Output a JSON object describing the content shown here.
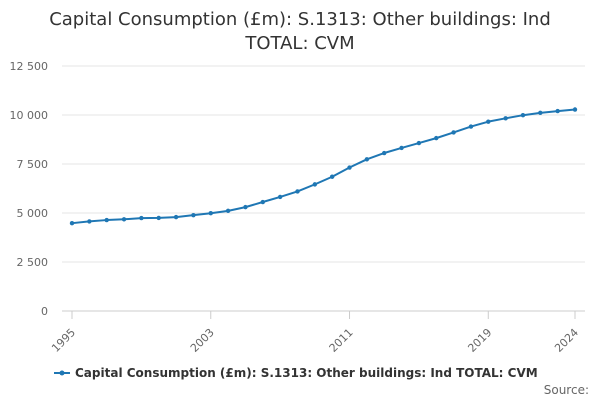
{
  "chart_data": {
    "type": "line",
    "title_lines": [
      "Capital Consumption (£m): S.1313: Other buildings: Ind",
      "TOTAL: CVM"
    ],
    "xlabel": "",
    "ylabel": "",
    "x": [
      1995,
      1996,
      1997,
      1998,
      1999,
      2000,
      2001,
      2002,
      2003,
      2004,
      2005,
      2006,
      2007,
      2008,
      2009,
      2010,
      2011,
      2012,
      2013,
      2014,
      2015,
      2016,
      2017,
      2018,
      2019,
      2020,
      2021,
      2022,
      2023,
      2024
    ],
    "x_tick_labels": [
      "1995",
      "2003",
      "2011",
      "2019",
      "2024"
    ],
    "x_tick_values": [
      1995,
      2003,
      2011,
      2019,
      2024
    ],
    "xlim": [
      1995,
      2024
    ],
    "y_tick_labels": [
      "0",
      "2 500",
      "5 000",
      "7 500",
      "10 000",
      "12 500"
    ],
    "y_tick_values": [
      0,
      2500,
      5000,
      7500,
      10000,
      12500
    ],
    "ylim": [
      0,
      12500
    ],
    "grid": true,
    "legend_position": "bottom",
    "series": [
      {
        "name": "Capital Consumption (£m): S.1313: Other buildings: Ind TOTAL: CVM",
        "color": "#1f77b4",
        "values": [
          4480,
          4570,
          4640,
          4680,
          4740,
          4750,
          4790,
          4890,
          4990,
          5110,
          5300,
          5560,
          5820,
          6100,
          6460,
          6850,
          7320,
          7740,
          8060,
          8320,
          8570,
          8820,
          9110,
          9410,
          9660,
          9830,
          9990,
          10110,
          10200,
          10280
        ]
      }
    ],
    "source_label": "Source:"
  }
}
